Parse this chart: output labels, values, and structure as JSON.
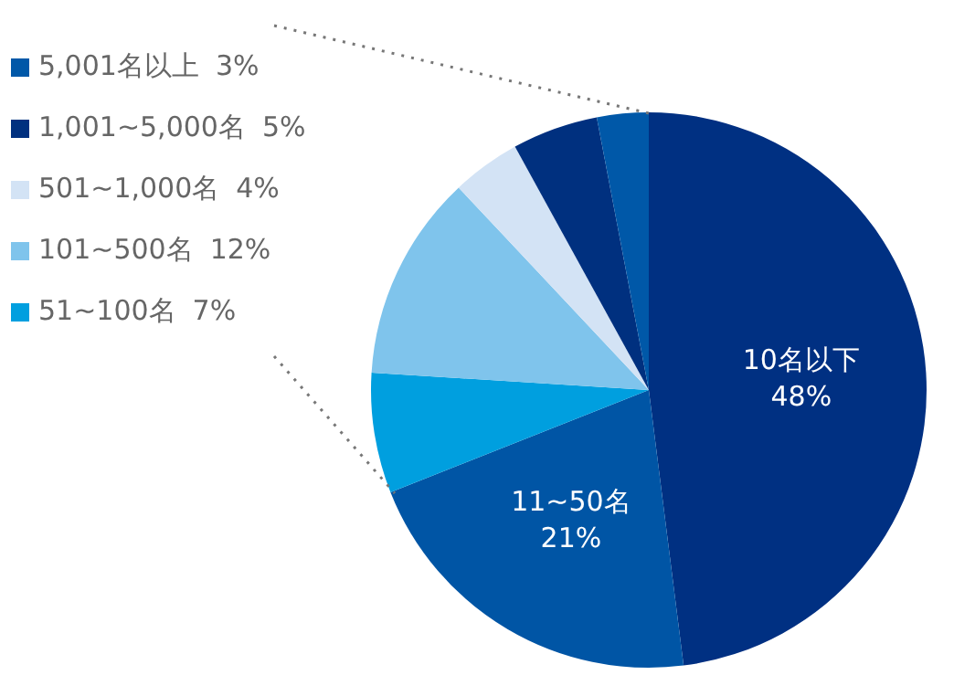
{
  "chart_data": {
    "type": "pie",
    "categories": [
      "10名以下",
      "11~50名",
      "51~100名",
      "101~500名",
      "501~1,000名",
      "1,001~5,000名",
      "5,001名以上"
    ],
    "values": [
      48,
      21,
      7,
      12,
      4,
      5,
      3
    ],
    "value_labels": [
      "48%",
      "21%",
      "7%",
      "12%",
      "4%",
      "5%",
      "3%"
    ],
    "colors": [
      "#003082",
      "#0055a5",
      "#009fdf",
      "#7fc4ec",
      "#d3e3f5",
      "#00307f",
      "#0058a8"
    ],
    "legend": "top left"
  }
}
